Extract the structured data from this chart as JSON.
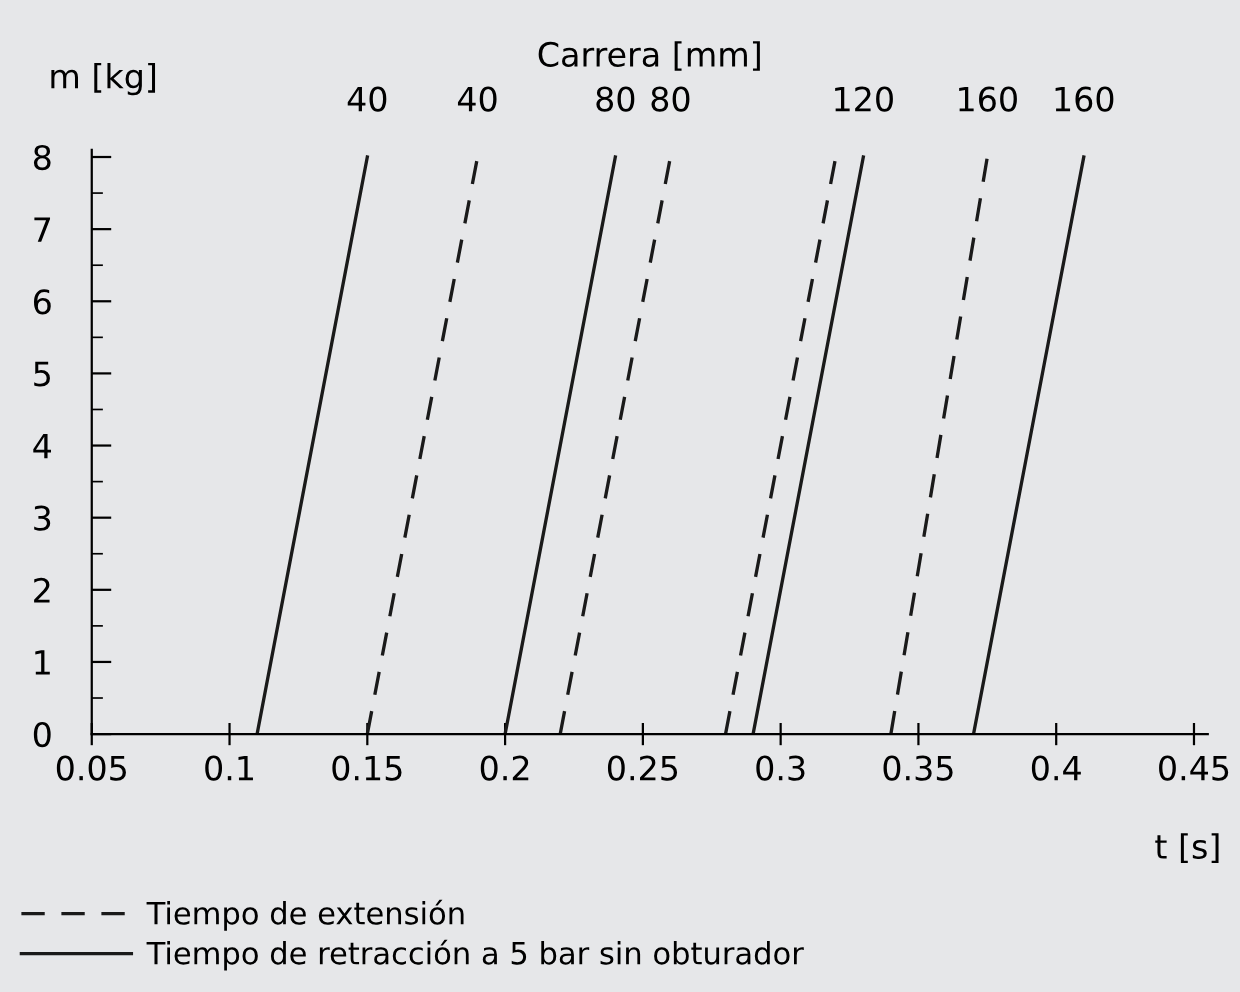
{
  "chart_data": {
    "type": "line",
    "title": "Carrera [mm]",
    "xlabel": "t [s]",
    "ylabel": "m [kg]",
    "xlim": [
      0.05,
      0.455
    ],
    "xticks": [
      0.05,
      0.1,
      0.15,
      0.2,
      0.25,
      0.3,
      0.35,
      0.4,
      0.45
    ],
    "ylim": [
      0,
      8.1
    ],
    "yticks": [
      0,
      1,
      2,
      3,
      4,
      5,
      6,
      7,
      8
    ],
    "grid": false,
    "legend": "bottom",
    "marker": "none",
    "series": [
      {
        "name": "Tiempo de extensión",
        "color": "#1a1a1a",
        "line_style": "dashed",
        "x": [
          0.15,
          0.19,
          null,
          0.22,
          0.26,
          null,
          0.28,
          0.32,
          null,
          0.34,
          0.375
        ],
        "values": [
          0,
          8,
          null,
          0,
          8,
          null,
          0,
          8,
          null,
          0,
          8
        ]
      },
      {
        "name": "Tiempo de retracción a 5 bar sin obturador",
        "color": "#1a1a1a",
        "line_style": "solid",
        "x": [
          0.11,
          0.15,
          null,
          0.2,
          0.24,
          null,
          0.29,
          0.33,
          null,
          0.37,
          0.41
        ],
        "values": [
          0,
          8,
          null,
          0,
          8,
          null,
          0,
          8,
          null,
          0,
          8
        ]
      }
    ],
    "annotations": [
      {
        "text": "40",
        "x": 0.15,
        "y": 8
      },
      {
        "text": "40",
        "x": 0.19,
        "y": 8
      },
      {
        "text": "80",
        "x": 0.24,
        "y": 8
      },
      {
        "text": "80",
        "x": 0.26,
        "y": 8
      },
      {
        "text": "120",
        "x": 0.33,
        "y": 8
      },
      {
        "text": "160",
        "x": 0.375,
        "y": 8
      },
      {
        "text": "160",
        "x": 0.41,
        "y": 8
      }
    ]
  }
}
